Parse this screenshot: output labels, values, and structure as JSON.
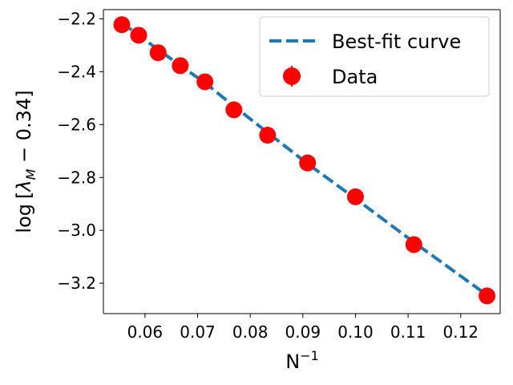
{
  "chart_data": {
    "type": "line",
    "title": "",
    "xlabel": "N",
    "xlabel_superscript": "−1",
    "ylabel_parts": {
      "prefix": "log",
      "bracket_open": "[",
      "lambda": "λ",
      "subscript": "M",
      "offset": " − 0.34",
      "bracket_close": "]"
    },
    "xlim": [
      0.0521,
      0.1275
    ],
    "ylim": [
      -3.315,
      -2.165
    ],
    "xticks": [
      0.06,
      0.07,
      0.08,
      0.09,
      0.1,
      0.11,
      0.12
    ],
    "xtick_labels": [
      "0.06",
      "0.07",
      "0.08",
      "0.09",
      "0.10",
      "0.11",
      "0.12"
    ],
    "yticks": [
      -3.2,
      -3.0,
      -2.8,
      -2.6,
      -2.4,
      -2.2
    ],
    "ytick_labels": [
      "−3.2",
      "−3.0",
      "−2.8",
      "−2.6",
      "−2.4",
      "−2.2"
    ],
    "grid": false,
    "legend_position": "top-right",
    "series": [
      {
        "name": "Best-fit curve",
        "style": "dashed",
        "color": "#1f77b4",
        "x": [
          0.0556,
          0.0588,
          0.0625,
          0.0667,
          0.0714,
          0.0769,
          0.0833,
          0.0909,
          0.1,
          0.1111,
          0.125
        ],
        "y": [
          -2.215,
          -2.262,
          -2.316,
          -2.376,
          -2.442,
          -2.53,
          -2.63,
          -2.748,
          -2.88,
          -3.045,
          -3.245
        ]
      },
      {
        "name": "Data",
        "style": "markers",
        "color": "#ff0000",
        "x": [
          0.0556,
          0.0588,
          0.0625,
          0.0667,
          0.0714,
          0.0769,
          0.0833,
          0.0909,
          0.1,
          0.1111,
          0.125
        ],
        "y": [
          -2.222,
          -2.262,
          -2.328,
          -2.377,
          -2.438,
          -2.544,
          -2.64,
          -2.745,
          -2.873,
          -3.054,
          -3.248
        ]
      }
    ]
  }
}
